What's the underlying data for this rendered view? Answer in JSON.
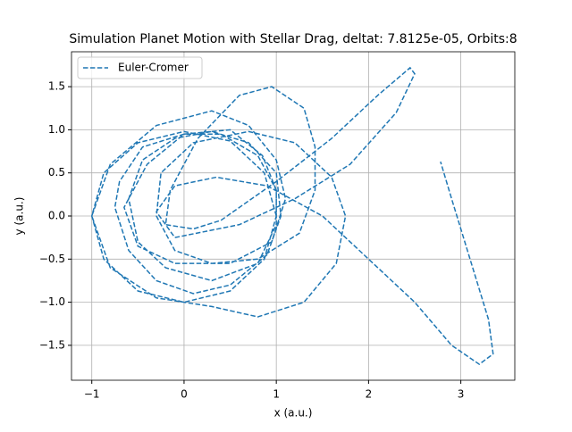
{
  "chart_data": {
    "type": "line",
    "title": "Simulation Planet Motion with Stellar Drag, deltat: 7.8125e-05, Orbits:8",
    "xlabel": "x (a.u.)",
    "ylabel": "y (a.u.)",
    "xlim": [
      -1.22,
      3.585
    ],
    "ylim": [
      -1.905,
      1.905
    ],
    "xticks": [
      {
        "value": -1,
        "label": "−1"
      },
      0,
      1,
      2,
      3
    ],
    "yticks": [
      {
        "value": -1.5,
        "label": "−1.5"
      },
      {
        "value": -1.0,
        "label": "−1.0"
      },
      {
        "value": -0.5,
        "label": "−0.5"
      },
      {
        "value": 0.0,
        "label": "0.0"
      },
      0.5,
      {
        "value": 1.0,
        "label": "1.0"
      },
      1.5
    ],
    "grid": true,
    "legend": "upper left",
    "dashed": true,
    "x": [
      1.0,
      0.87,
      0.5,
      0.0,
      -0.5,
      -0.87,
      -1.0,
      -0.87,
      -0.5,
      0.0,
      0.5,
      0.87,
      1.0,
      1.0,
      0.8,
      0.4,
      0.0,
      -0.45,
      -0.7,
      -0.75,
      -0.6,
      -0.3,
      0.1,
      0.5,
      0.9,
      1.05,
      1.0,
      0.7,
      0.3,
      -0.1,
      -0.45,
      -0.6,
      -0.5,
      -0.2,
      0.3,
      0.8,
      1.0,
      1.0,
      0.85,
      0.5,
      0.0,
      -0.4,
      -0.65,
      -0.5,
      -0.1,
      0.5,
      0.95,
      1.1,
      1.0,
      0.7,
      0.3,
      -0.3,
      -0.8,
      -1.0,
      -0.8,
      -0.3,
      0.3,
      0.8,
      1.3,
      1.65,
      1.75,
      1.6,
      1.2,
      0.7,
      0.1,
      -0.25,
      -0.3,
      -0.1,
      0.3,
      0.8,
      1.25,
      1.42,
      1.42,
      1.3,
      0.95,
      0.6,
      0.15,
      -0.15,
      -0.2,
      0.1,
      0.4,
      1.0,
      1.6,
      2.1,
      2.45,
      2.5,
      2.3,
      1.8,
      1.2,
      0.6,
      -0.1,
      -0.3,
      -0.1,
      0.35,
      0.9,
      1.5,
      2.0,
      2.5,
      2.9,
      3.2,
      3.35,
      3.3,
      3.1,
      2.9,
      2.78
    ],
    "series": [
      {
        "name": "Euler-Cromer",
        "color": "#1f77b4",
        "values": [
          0.0,
          0.5,
          0.87,
          0.98,
          0.85,
          0.5,
          0.0,
          -0.5,
          -0.87,
          -1.0,
          -0.87,
          -0.5,
          0.0,
          0.3,
          0.7,
          0.95,
          0.95,
          0.8,
          0.4,
          0.1,
          -0.4,
          -0.75,
          -0.9,
          -0.8,
          -0.45,
          0.0,
          0.5,
          0.85,
          0.98,
          0.9,
          0.65,
          0.2,
          -0.3,
          -0.6,
          -0.75,
          -0.55,
          -0.1,
          0.3,
          0.7,
          1.0,
          0.95,
          0.6,
          0.1,
          -0.35,
          -0.55,
          -0.55,
          -0.3,
          0.2,
          0.65,
          1.05,
          1.22,
          1.05,
          0.6,
          0.0,
          -0.6,
          -0.95,
          -1.05,
          -1.17,
          -1.0,
          -0.55,
          0.0,
          0.45,
          0.85,
          0.98,
          0.85,
          0.5,
          0.0,
          -0.4,
          -0.55,
          -0.5,
          -0.2,
          0.3,
          0.8,
          1.25,
          1.5,
          1.4,
          0.9,
          0.3,
          -0.1,
          -0.15,
          -0.05,
          0.4,
          0.9,
          1.4,
          1.72,
          1.65,
          1.2,
          0.6,
          0.2,
          -0.1,
          -0.25,
          0.05,
          0.35,
          0.45,
          0.35,
          0.0,
          -0.5,
          -1.0,
          -1.5,
          -1.72,
          -1.6,
          -1.2,
          -0.5,
          0.2,
          0.63
        ]
      }
    ]
  }
}
